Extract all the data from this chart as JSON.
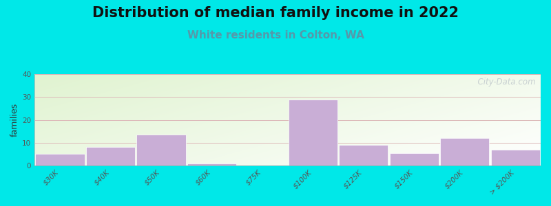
{
  "title": "Distribution of median family income in 2022",
  "subtitle": "White residents in Colton, WA",
  "ylabel": "families",
  "categories": [
    "$30K",
    "$40K",
    "$50K",
    "$60K",
    "$75K",
    "$100K",
    "$125K",
    "$150K",
    "$200K",
    "> $200K"
  ],
  "values": [
    5,
    8,
    13.5,
    1,
    0,
    29,
    9,
    5.5,
    12,
    7
  ],
  "bar_color": "#c9aed6",
  "bar_edge_color": "#ffffff",
  "background_outer": "#00e8e8",
  "title_fontsize": 15,
  "subtitle_fontsize": 11,
  "subtitle_color": "#5599aa",
  "ylabel_fontsize": 9,
  "tick_fontsize": 7.5,
  "ylim": [
    0,
    40
  ],
  "yticks": [
    0,
    10,
    20,
    30,
    40
  ],
  "grid_color": "#ddb8b8",
  "watermark": "  City-Data.com"
}
